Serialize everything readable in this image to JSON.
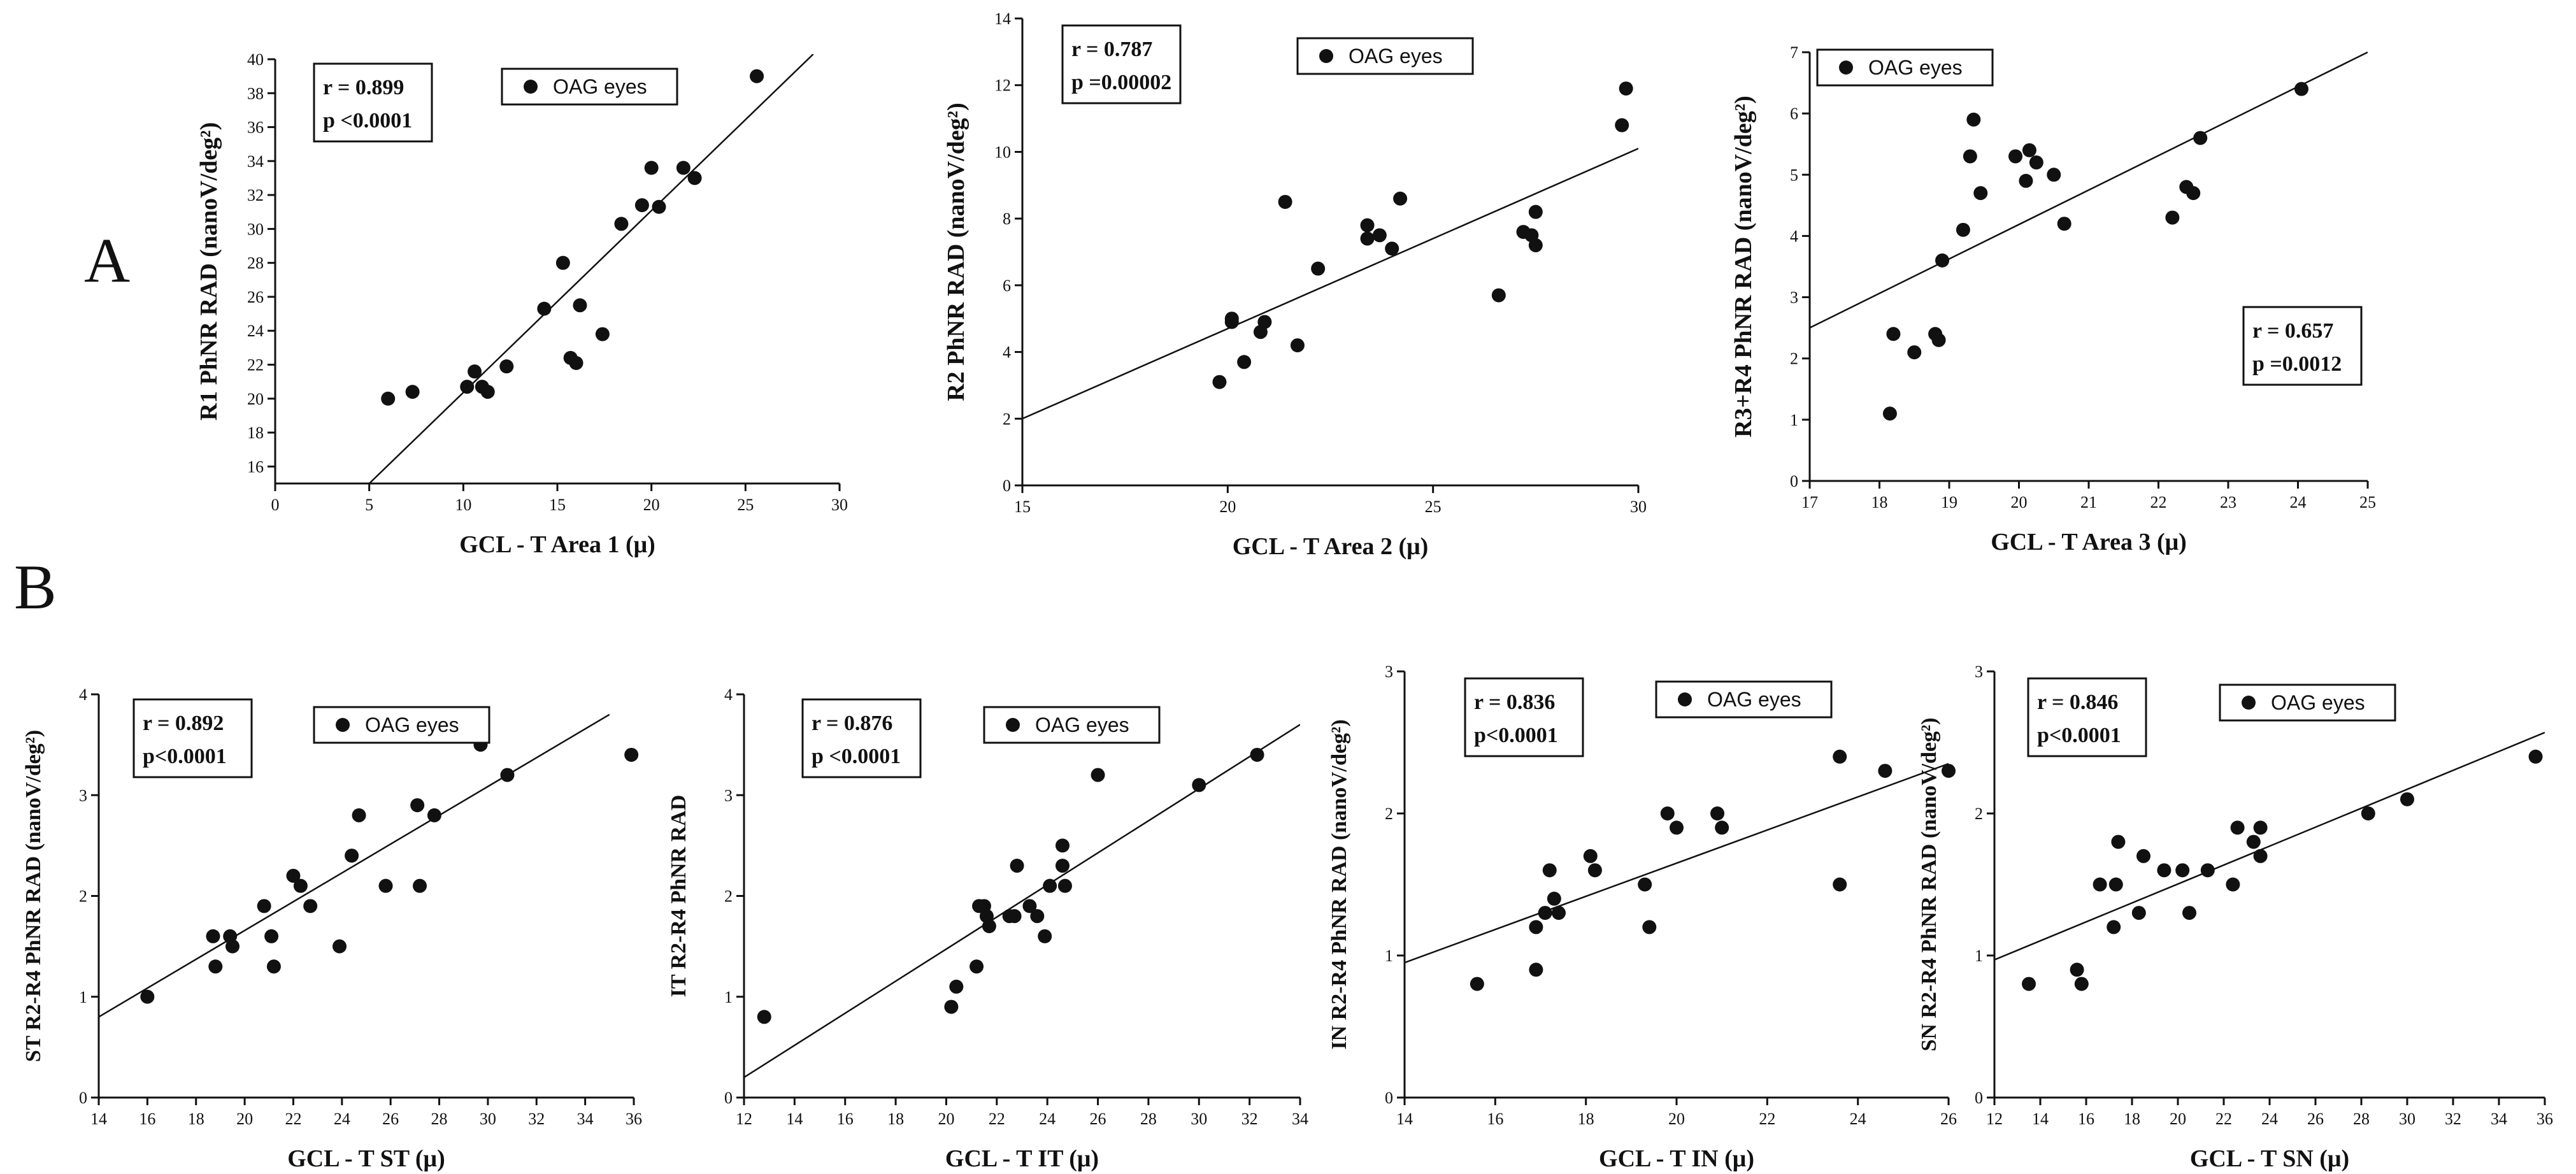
{
  "figure": {
    "panel_labels": [
      "A",
      "B"
    ]
  },
  "chart_data": [
    {
      "id": "a1",
      "type": "scatter",
      "xlabel": "GCL - T Area 1  (μ)",
      "ylabel": "R1 PhNR RAD (nanoV/deg²)",
      "xlim": [
        0,
        30
      ],
      "ylim": [
        15,
        40
      ],
      "xticks": [
        0,
        5,
        10,
        15,
        20,
        25,
        30
      ],
      "yticks": [
        16,
        18,
        20,
        22,
        24,
        26,
        28,
        30,
        32,
        34,
        36,
        38,
        40
      ],
      "legend": "OAG eyes",
      "stats": {
        "r": "r  = 0.899",
        "p": "p <0.0001"
      },
      "points": [
        [
          6,
          20
        ],
        [
          7.3,
          20.4
        ],
        [
          10.2,
          20.7
        ],
        [
          10.6,
          21.6
        ],
        [
          11,
          20.7
        ],
        [
          11.3,
          20.4
        ],
        [
          12.3,
          21.9
        ],
        [
          14.3,
          25.3
        ],
        [
          15.3,
          28
        ],
        [
          15.7,
          22.4
        ],
        [
          16,
          22.1
        ],
        [
          16.2,
          25.5
        ],
        [
          17.4,
          23.8
        ],
        [
          18.4,
          30.3
        ],
        [
          19.5,
          31.4
        ],
        [
          20,
          33.6
        ],
        [
          20.4,
          31.3
        ],
        [
          21.7,
          33.6
        ],
        [
          22.3,
          33
        ],
        [
          25.6,
          39
        ]
      ],
      "fit": [
        [
          5,
          15
        ],
        [
          28.6,
          40.3
        ]
      ]
    },
    {
      "id": "a2",
      "type": "scatter",
      "xlabel": "GCL - T Area 2 (μ)",
      "ylabel": "R2 PhNR RAD (nanoV/deg²)",
      "xlim": [
        15,
        30
      ],
      "ylim": [
        0,
        14
      ],
      "xticks": [
        15,
        20,
        25,
        30
      ],
      "yticks": [
        0,
        2,
        4,
        6,
        8,
        10,
        12,
        14
      ],
      "legend": "OAG eyes",
      "stats": {
        "r": "r  = 0.787",
        "p": "p =0.00002"
      },
      "points": [
        [
          19.8,
          3.1
        ],
        [
          20.1,
          5
        ],
        [
          20.1,
          4.9
        ],
        [
          20.4,
          3.7
        ],
        [
          20.8,
          4.6
        ],
        [
          20.9,
          4.9
        ],
        [
          21.4,
          8.5
        ],
        [
          21.7,
          4.2
        ],
        [
          22.2,
          6.5
        ],
        [
          23.4,
          7.8
        ],
        [
          23.4,
          7.4
        ],
        [
          23.7,
          7.5
        ],
        [
          24,
          7.1
        ],
        [
          24.2,
          8.6
        ],
        [
          26.6,
          5.7
        ],
        [
          27.2,
          7.6
        ],
        [
          27.4,
          7.5
        ],
        [
          27.5,
          7.2
        ],
        [
          27.5,
          8.2
        ],
        [
          29.6,
          10.8
        ],
        [
          29.7,
          11.9
        ]
      ],
      "fit": [
        [
          15,
          2.0
        ],
        [
          30,
          10.1
        ]
      ]
    },
    {
      "id": "a3",
      "type": "scatter",
      "xlabel": "GCL - T Area 3 (μ)",
      "ylabel": "R3+R4 PhNR RAD (nanoV/deg²)",
      "xlim": [
        17,
        25
      ],
      "ylim": [
        0,
        7
      ],
      "xticks": [
        17,
        18,
        19,
        20,
        21,
        22,
        23,
        24,
        25
      ],
      "yticks": [
        0,
        1,
        2,
        3,
        4,
        5,
        6,
        7
      ],
      "legend": "OAG eyes",
      "stats": {
        "r": "r  = 0.657",
        "p": "p =0.0012"
      },
      "points": [
        [
          18.15,
          1.1
        ],
        [
          18.2,
          2.4
        ],
        [
          18.5,
          2.1
        ],
        [
          18.8,
          2.4
        ],
        [
          18.85,
          2.3
        ],
        [
          18.9,
          3.6
        ],
        [
          19.2,
          4.1
        ],
        [
          19.3,
          5.3
        ],
        [
          19.35,
          5.9
        ],
        [
          19.45,
          4.7
        ],
        [
          19.95,
          5.3
        ],
        [
          20.1,
          4.9
        ],
        [
          20.15,
          5.4
        ],
        [
          20.25,
          5.2
        ],
        [
          20.5,
          5
        ],
        [
          20.65,
          4.2
        ],
        [
          22.2,
          4.3
        ],
        [
          22.4,
          4.8
        ],
        [
          22.5,
          4.7
        ],
        [
          22.6,
          5.6
        ],
        [
          24.05,
          6.4
        ]
      ],
      "fit": [
        [
          17,
          2.5
        ],
        [
          25,
          7.0
        ]
      ]
    },
    {
      "id": "b1",
      "type": "scatter",
      "xlabel": "GCL - T ST (μ)",
      "ylabel": "ST R2-R4 PhNR RAD (nanoV/deg²)",
      "xlim": [
        14,
        36
      ],
      "ylim": [
        0,
        4
      ],
      "xticks": [
        14,
        16,
        18,
        20,
        22,
        24,
        26,
        28,
        30,
        32,
        34,
        36
      ],
      "yticks": [
        0,
        1,
        2,
        3,
        4
      ],
      "legend": "OAG eyes",
      "stats": {
        "r": "r  = 0.892",
        "p": "p<0.0001"
      },
      "points": [
        [
          16,
          1
        ],
        [
          18.7,
          1.6
        ],
        [
          18.8,
          1.3
        ],
        [
          19.4,
          1.6
        ],
        [
          19.5,
          1.5
        ],
        [
          20.8,
          1.9
        ],
        [
          21.1,
          1.6
        ],
        [
          21.2,
          1.3
        ],
        [
          22,
          2.2
        ],
        [
          22.3,
          2.1
        ],
        [
          22.7,
          1.9
        ],
        [
          23.9,
          1.5
        ],
        [
          24.4,
          2.4
        ],
        [
          24.7,
          2.8
        ],
        [
          25.8,
          2.1
        ],
        [
          27.1,
          2.9
        ],
        [
          27.2,
          2.1
        ],
        [
          27.8,
          2.8
        ],
        [
          29.7,
          3.5
        ],
        [
          30.8,
          3.2
        ],
        [
          35.9,
          3.4
        ]
      ],
      "fit": [
        [
          14,
          0.8
        ],
        [
          35,
          3.8
        ]
      ]
    },
    {
      "id": "b2",
      "type": "scatter",
      "xlabel": "GCL - T IT (μ)",
      "ylabel": "IT R2-R4 PhNR RAD",
      "xlim": [
        12,
        34
      ],
      "ylim": [
        0,
        4
      ],
      "xticks": [
        12,
        14,
        16,
        18,
        20,
        22,
        24,
        26,
        28,
        30,
        32,
        34
      ],
      "yticks": [
        0,
        1,
        2,
        3,
        4
      ],
      "legend": "OAG eyes",
      "stats": {
        "r": "r  = 0.876",
        "p": "p <0.0001"
      },
      "points": [
        [
          12.8,
          0.8
        ],
        [
          20.2,
          0.9
        ],
        [
          20.4,
          1.1
        ],
        [
          21.2,
          1.3
        ],
        [
          21.3,
          1.9
        ],
        [
          21.5,
          1.9
        ],
        [
          21.6,
          1.8
        ],
        [
          21.7,
          1.7
        ],
        [
          22.5,
          1.8
        ],
        [
          22.7,
          1.8
        ],
        [
          22.8,
          2.3
        ],
        [
          23.3,
          1.9
        ],
        [
          23.6,
          1.8
        ],
        [
          23.9,
          1.6
        ],
        [
          24.1,
          2.1
        ],
        [
          24.6,
          2.5
        ],
        [
          24.6,
          2.3
        ],
        [
          24.7,
          2.1
        ],
        [
          26,
          3.2
        ],
        [
          30,
          3.1
        ],
        [
          32.3,
          3.4
        ]
      ],
      "fit": [
        [
          12,
          0.2
        ],
        [
          34,
          3.7
        ]
      ]
    },
    {
      "id": "b3",
      "type": "scatter",
      "xlabel": "GCL - T IN (μ)",
      "ylabel": "IN R2-R4 PhNR RAD (nanoV/deg²)",
      "xlim": [
        14,
        26
      ],
      "ylim": [
        0,
        3
      ],
      "xticks": [
        14,
        16,
        18,
        20,
        22,
        24,
        26
      ],
      "yticks": [
        0,
        1,
        2,
        3
      ],
      "legend": "OAG eyes",
      "stats": {
        "r": "r  = 0.836",
        "p": "p<0.0001"
      },
      "points": [
        [
          15.6,
          0.8
        ],
        [
          16.9,
          0.9
        ],
        [
          16.9,
          1.2
        ],
        [
          17.1,
          1.3
        ],
        [
          17.2,
          1.6
        ],
        [
          17.3,
          1.4
        ],
        [
          17.4,
          1.3
        ],
        [
          18.1,
          1.7
        ],
        [
          18.2,
          1.6
        ],
        [
          19.3,
          1.5
        ],
        [
          19.4,
          1.2
        ],
        [
          19.8,
          2
        ],
        [
          20,
          1.9
        ],
        [
          20.9,
          2
        ],
        [
          21,
          1.9
        ],
        [
          23.6,
          1.5
        ],
        [
          23.6,
          2.4
        ],
        [
          24.6,
          2.3
        ],
        [
          26,
          2.3
        ]
      ],
      "fit": [
        [
          14,
          0.95
        ],
        [
          26,
          2.35
        ]
      ]
    },
    {
      "id": "b4",
      "type": "scatter",
      "xlabel": "GCL - T SN (μ)",
      "ylabel": "SN R2-R4 PhNR RAD (nanoV/deg²)",
      "xlim": [
        12,
        36
      ],
      "ylim": [
        0,
        3
      ],
      "xticks": [
        12,
        14,
        16,
        18,
        20,
        22,
        24,
        26,
        28,
        30,
        32,
        34,
        36
      ],
      "yticks": [
        0,
        1,
        2,
        3
      ],
      "legend": "OAG eyes",
      "stats": {
        "r": "r  = 0.846",
        "p": "p<0.0001"
      },
      "points": [
        [
          13.5,
          0.8
        ],
        [
          15.6,
          0.9
        ],
        [
          15.8,
          0.8
        ],
        [
          16.6,
          1.5
        ],
        [
          17.2,
          1.2
        ],
        [
          17.3,
          1.5
        ],
        [
          17.4,
          1.8
        ],
        [
          18.3,
          1.3
        ],
        [
          18.5,
          1.7
        ],
        [
          19.4,
          1.6
        ],
        [
          20.2,
          1.6
        ],
        [
          20.5,
          1.3
        ],
        [
          21.3,
          1.6
        ],
        [
          22.4,
          1.5
        ],
        [
          22.6,
          1.9
        ],
        [
          23.3,
          1.8
        ],
        [
          23.6,
          1.7
        ],
        [
          23.6,
          1.9
        ],
        [
          28.3,
          2
        ],
        [
          30,
          2.1
        ],
        [
          35.6,
          2.4
        ]
      ],
      "fit": [
        [
          12,
          0.97
        ],
        [
          36,
          2.57
        ]
      ]
    }
  ]
}
